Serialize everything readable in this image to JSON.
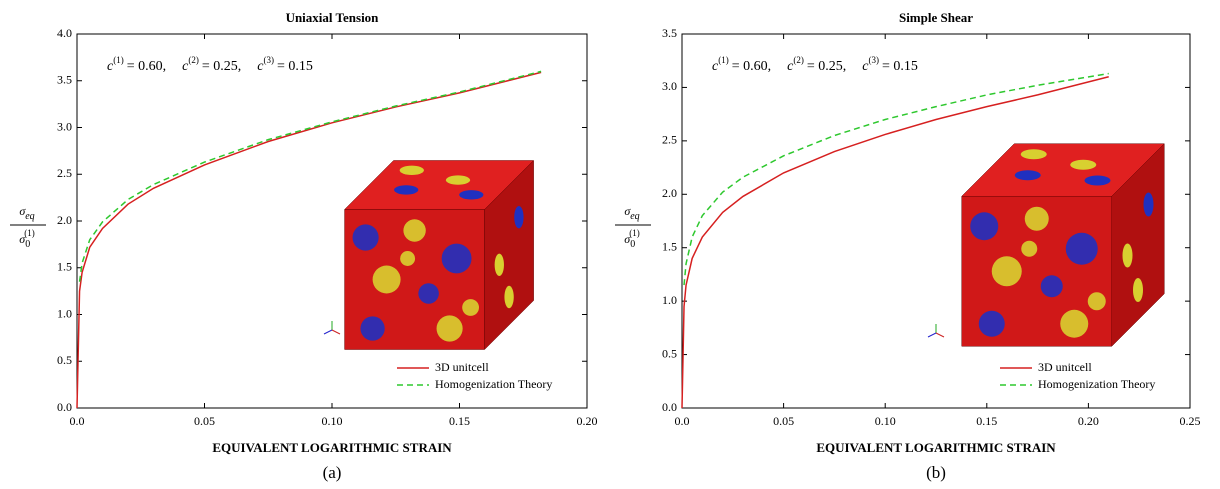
{
  "chart_data": [
    {
      "type": "line",
      "title": "Uniaxial Tension",
      "xlabel": "EQUIVALENT LOGARITHMIC STRAIN",
      "ylabel": {
        "numerator": "σ",
        "numerator_sub": "eq",
        "denominator": "σ",
        "denominator_sub": "0",
        "denominator_sup": "(1)"
      },
      "annotation": [
        {
          "symbol": "c",
          "sup": "(1)",
          "text": "= 0.60,"
        },
        {
          "symbol": "c",
          "sup": "(2)",
          "text": "= 0.25,"
        },
        {
          "symbol": "c",
          "sup": "(3)",
          "text": "= 0.15"
        }
      ],
      "caption": "(a)",
      "x": [
        0,
        0.001,
        0.002,
        0.005,
        0.01,
        0.02,
        0.03,
        0.05,
        0.075,
        0.1,
        0.125,
        0.15,
        0.182
      ],
      "series": [
        {
          "name": "3D unitcell",
          "color": "#d62020",
          "line_style": "solid",
          "values": [
            0,
            1.25,
            1.45,
            1.72,
            1.92,
            2.18,
            2.35,
            2.6,
            2.85,
            3.05,
            3.22,
            3.37,
            3.59
          ]
        },
        {
          "name": "Homogenization Theory",
          "color": "#2ec82e",
          "line_style": "dashed",
          "values": [
            null,
            1.35,
            1.55,
            1.8,
            1.99,
            2.23,
            2.39,
            2.63,
            2.87,
            3.06,
            3.23,
            3.38,
            3.6
          ]
        }
      ],
      "xlim": [
        0,
        0.2
      ],
      "xticks": [
        {
          "value": 0,
          "label": "0.0"
        },
        0.05,
        {
          "value": 0.1,
          "label": "0.10"
        },
        0.15,
        {
          "value": 0.2,
          "label": "0.20"
        }
      ],
      "ylim": [
        0,
        4
      ],
      "yticks": [
        {
          "value": 0,
          "label": "0.0"
        },
        0.5,
        {
          "value": 1,
          "label": "1.0"
        },
        1.5,
        {
          "value": 2,
          "label": "2.0"
        },
        2.5,
        {
          "value": 3,
          "label": "3.0"
        },
        3.5,
        {
          "value": 4,
          "label": "4.0"
        }
      ],
      "legend": "lower right"
    },
    {
      "type": "line",
      "title": "Simple Shear",
      "xlabel": "EQUIVALENT LOGARITHMIC STRAIN",
      "ylabel": {
        "numerator": "σ",
        "numerator_sub": "eq",
        "denominator": "σ",
        "denominator_sub": "0",
        "denominator_sup": "(1)"
      },
      "annotation": [
        {
          "symbol": "c",
          "sup": "(1)",
          "text": "= 0.60,"
        },
        {
          "symbol": "c",
          "sup": "(2)",
          "text": "= 0.25,"
        },
        {
          "symbol": "c",
          "sup": "(3)",
          "text": "= 0.15"
        }
      ],
      "caption": "(b)",
      "x": [
        0,
        0.001,
        0.002,
        0.005,
        0.01,
        0.02,
        0.03,
        0.05,
        0.075,
        0.1,
        0.125,
        0.15,
        0.175,
        0.21
      ],
      "series": [
        {
          "name": "3D unitcell",
          "color": "#d62020",
          "line_style": "solid",
          "values": [
            0,
            0.95,
            1.15,
            1.4,
            1.6,
            1.83,
            1.98,
            2.2,
            2.4,
            2.56,
            2.7,
            2.82,
            2.93,
            3.1
          ]
        },
        {
          "name": "Homogenization Theory",
          "color": "#2ec82e",
          "line_style": "dashed",
          "values": [
            null,
            1.15,
            1.35,
            1.6,
            1.8,
            2.02,
            2.16,
            2.36,
            2.55,
            2.7,
            2.82,
            2.93,
            3.02,
            3.13
          ]
        }
      ],
      "xlim": [
        0,
        0.25
      ],
      "xticks": [
        {
          "value": 0,
          "label": "0.0"
        },
        0.05,
        {
          "value": 0.1,
          "label": "0.10"
        },
        0.15,
        {
          "value": 0.2,
          "label": "0.20"
        },
        0.25
      ],
      "ylim": [
        0,
        3.5
      ],
      "yticks": [
        {
          "value": 0,
          "label": "0.0"
        },
        0.5,
        {
          "value": 1,
          "label": "1.0"
        },
        1.5,
        {
          "value": 2,
          "label": "2.0"
        },
        2.5,
        {
          "value": 3,
          "label": "3.0"
        },
        3.5
      ],
      "legend": "lower right"
    }
  ]
}
